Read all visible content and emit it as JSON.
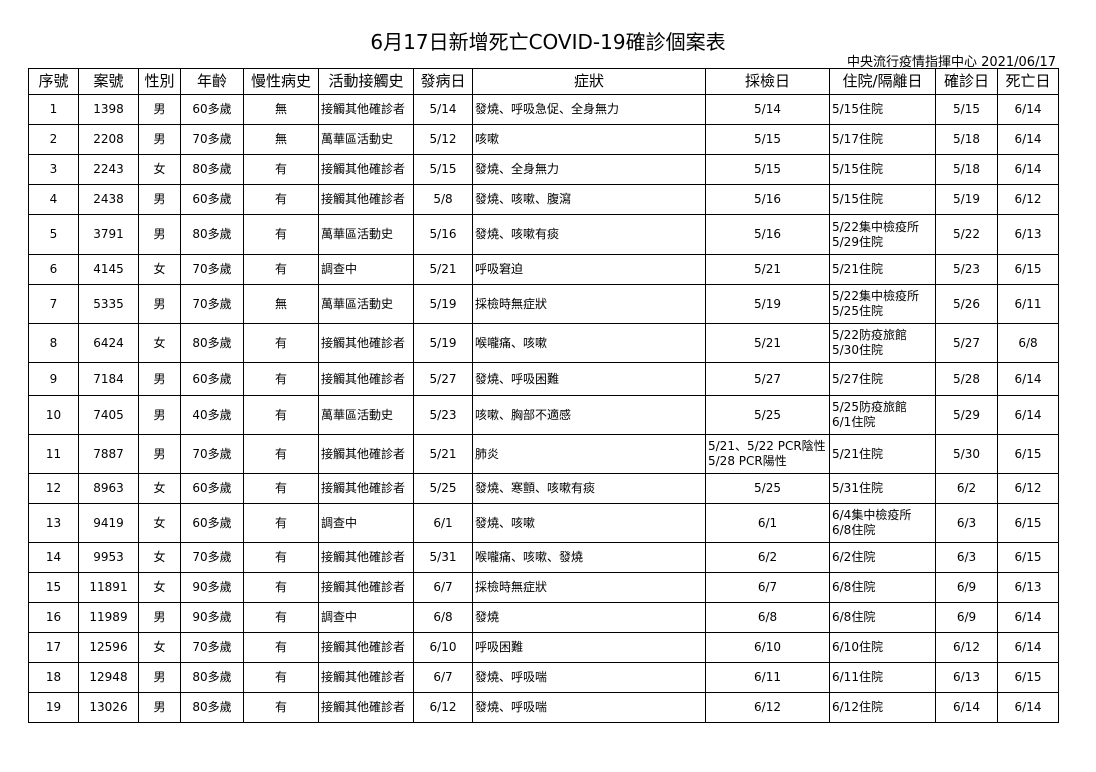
{
  "title": "6月17日新增死亡COVID-19確診個案表",
  "subtitle": "中央流行疫情指揮中心 2021/06/17",
  "headers": [
    "序號",
    "案號",
    "性別",
    "年齡",
    "慢性病史",
    "活動接觸史",
    "發病日",
    "症狀",
    "採檢日",
    "住院/隔離日",
    "確診日",
    "死亡日"
  ],
  "rows": [
    [
      "1",
      "1398",
      "男",
      "60多歲",
      "無",
      "接觸其他確診者",
      "5/14",
      "發燒、呼吸急促、全身無力",
      "5/14",
      "5/15住院",
      "5/15",
      "6/14"
    ],
    [
      "2",
      "2208",
      "男",
      "70多歲",
      "無",
      "萬華區活動史",
      "5/12",
      "咳嗽",
      "5/15",
      "5/17住院",
      "5/18",
      "6/14"
    ],
    [
      "3",
      "2243",
      "女",
      "80多歲",
      "有",
      "接觸其他確診者",
      "5/15",
      "發燒、全身無力",
      "5/15",
      "5/15住院",
      "5/18",
      "6/14"
    ],
    [
      "4",
      "2438",
      "男",
      "60多歲",
      "有",
      "接觸其他確診者",
      "5/8",
      "發燒、咳嗽、腹瀉",
      "5/16",
      "5/15住院",
      "5/19",
      "6/12"
    ],
    [
      "5",
      "3791",
      "男",
      "80多歲",
      "有",
      "萬華區活動史",
      "5/16",
      "發燒、咳嗽有痰",
      "5/16",
      "5/22集中檢疫所\n5/29住院",
      "5/22",
      "6/13"
    ],
    [
      "6",
      "4145",
      "女",
      "70多歲",
      "有",
      "調查中",
      "5/21",
      "呼吸窘迫",
      "5/21",
      "5/21住院",
      "5/23",
      "6/15"
    ],
    [
      "7",
      "5335",
      "男",
      "70多歲",
      "無",
      "萬華區活動史",
      "5/19",
      "採檢時無症狀",
      "5/19",
      "5/22集中檢疫所\n5/25住院",
      "5/26",
      "6/11"
    ],
    [
      "8",
      "6424",
      "女",
      "80多歲",
      "有",
      "接觸其他確診者",
      "5/19",
      "喉嚨痛、咳嗽",
      "5/21",
      "5/22防疫旅館\n5/30住院",
      "5/27",
      "6/8"
    ],
    [
      "9",
      "7184",
      "男",
      "60多歲",
      "有",
      "接觸其他確診者",
      "5/27",
      "發燒、呼吸困難",
      "5/27",
      "5/27住院",
      "5/28",
      "6/14"
    ],
    [
      "10",
      "7405",
      "男",
      "40多歲",
      "有",
      "萬華區活動史",
      "5/23",
      "咳嗽、胸部不適感",
      "5/25",
      "5/25防疫旅館\n6/1住院",
      "5/29",
      "6/14"
    ],
    [
      "11",
      "7887",
      "男",
      "70多歲",
      "有",
      "接觸其他確診者",
      "5/21",
      "肺炎",
      "5/21、5/22 PCR陰性\n5/28 PCR陽性",
      "5/21住院",
      "5/30",
      "6/15"
    ],
    [
      "12",
      "8963",
      "女",
      "60多歲",
      "有",
      "接觸其他確診者",
      "5/25",
      "發燒、寒顫、咳嗽有痰",
      "5/25",
      "5/31住院",
      "6/2",
      "6/12"
    ],
    [
      "13",
      "9419",
      "女",
      "60多歲",
      "有",
      "調查中",
      "6/1",
      "發燒、咳嗽",
      "6/1",
      "6/4集中檢疫所\n6/8住院",
      "6/3",
      "6/15"
    ],
    [
      "14",
      "9953",
      "女",
      "70多歲",
      "有",
      "接觸其他確診者",
      "5/31",
      "喉嚨痛、咳嗽、發燒",
      "6/2",
      "6/2住院",
      "6/3",
      "6/15"
    ],
    [
      "15",
      "11891",
      "女",
      "90多歲",
      "有",
      "接觸其他確診者",
      "6/7",
      "採檢時無症狀",
      "6/7",
      "6/8住院",
      "6/9",
      "6/13"
    ],
    [
      "16",
      "11989",
      "男",
      "90多歲",
      "有",
      "調查中",
      "6/8",
      "發燒",
      "6/8",
      "6/8住院",
      "6/9",
      "6/14"
    ],
    [
      "17",
      "12596",
      "女",
      "70多歲",
      "有",
      "接觸其他確診者",
      "6/10",
      "呼吸困難",
      "6/10",
      "6/10住院",
      "6/12",
      "6/14"
    ],
    [
      "18",
      "12948",
      "男",
      "80多歲",
      "有",
      "接觸其他確診者",
      "6/7",
      "發燒、呼吸喘",
      "6/11",
      "6/11住院",
      "6/13",
      "6/15"
    ],
    [
      "19",
      "13026",
      "男",
      "80多歲",
      "有",
      "接觸其他確診者",
      "6/12",
      "發燒、呼吸喘",
      "6/12",
      "6/12住院",
      "6/14",
      "6/14"
    ]
  ]
}
